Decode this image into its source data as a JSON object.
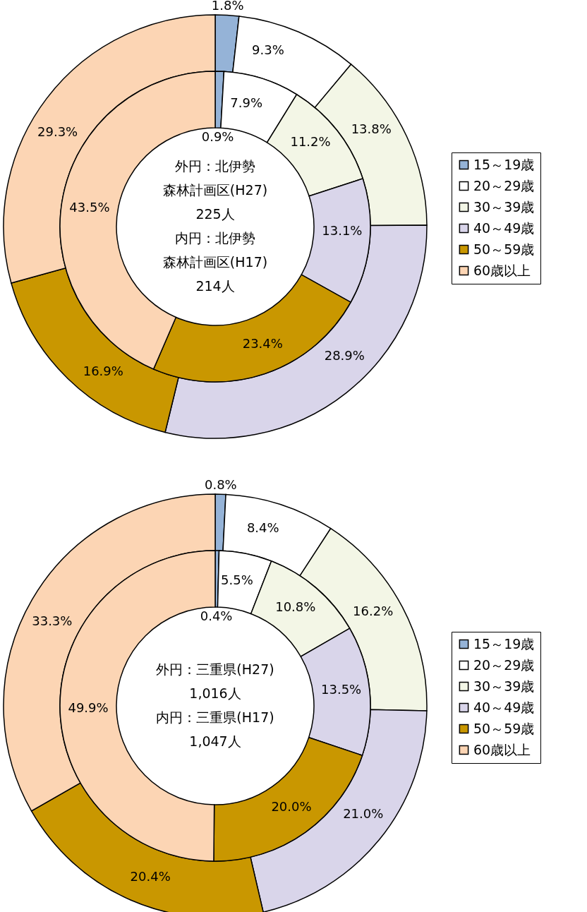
{
  "chart_data": [
    {
      "type": "donut",
      "categories": [
        "15～19歳",
        "20～29歳",
        "30～39歳",
        "40～49歳",
        "50～59歳",
        "60歳以上"
      ],
      "colors": [
        "#95b3d7",
        "#ffffff",
        "#f3f6e6",
        "#d9d5ea",
        "#c99700",
        "#fcd5b4"
      ],
      "legend": "right",
      "series": [
        {
          "values": [
            1.8,
            9.3,
            13.8,
            28.9,
            16.9,
            29.3
          ],
          "value_labels": [
            "1.8%",
            "9.3%",
            "13.8%",
            "28.9%",
            "16.9%",
            "29.3%"
          ]
        },
        {
          "values": [
            0.9,
            7.9,
            11.2,
            13.1,
            23.4,
            43.5
          ],
          "value_labels": [
            "0.9%",
            "7.9%",
            "11.2%",
            "13.1%",
            "23.4%",
            "43.5%"
          ]
        }
      ],
      "annotations": [
        "外円：北伊勢",
        "森林計画区(H27)",
        "225人",
        "内円：北伊勢",
        "森林計画区(H17)",
        "214人"
      ]
    },
    {
      "type": "donut",
      "categories": [
        "15～19歳",
        "20～29歳",
        "30～39歳",
        "40～49歳",
        "50～59歳",
        "60歳以上"
      ],
      "colors": [
        "#95b3d7",
        "#ffffff",
        "#f3f6e6",
        "#d9d5ea",
        "#c99700",
        "#fcd5b4"
      ],
      "legend": "right",
      "series": [
        {
          "values": [
            0.8,
            8.4,
            16.2,
            21.0,
            20.4,
            33.3
          ],
          "value_labels": [
            "0.8%",
            "8.4%",
            "16.2%",
            "21.0%",
            "20.4%",
            "33.3%"
          ]
        },
        {
          "values": [
            0.4,
            5.5,
            10.8,
            13.5,
            20.0,
            49.9
          ],
          "value_labels": [
            "0.4%",
            "5.5%",
            "10.8%",
            "13.5%",
            "20.0%",
            "49.9%"
          ]
        }
      ],
      "annotations": [
        "外円：三重県(H27)",
        "1,016人",
        "内円：三重県(H17)",
        "1,047人"
      ]
    }
  ]
}
